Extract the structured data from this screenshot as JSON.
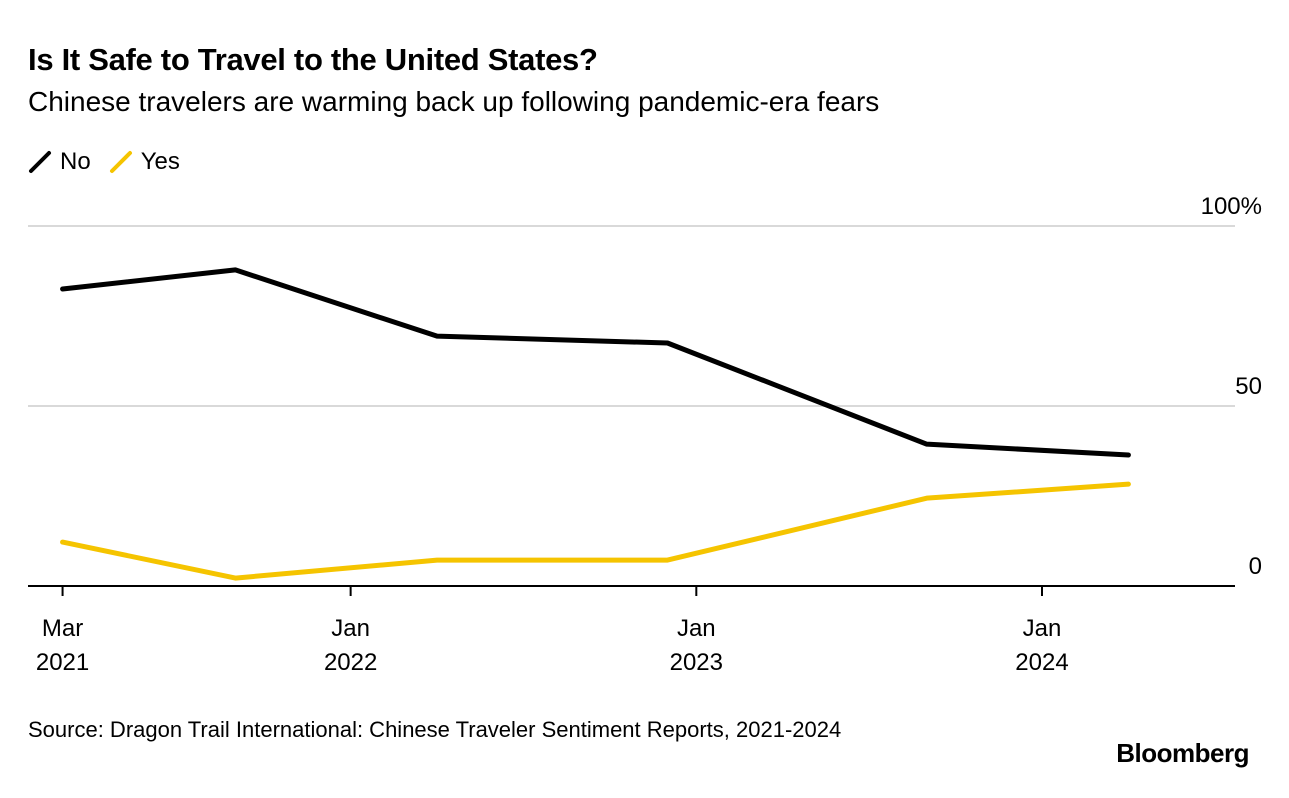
{
  "title": "Is It Safe to Travel to the United States?",
  "subtitle": "Chinese travelers are warming back up following pandemic-era fears",
  "source": "Source: Dragon Trail International: Chinese Traveler Sentiment Reports, 2021-2024",
  "logo": "Bloomberg",
  "chart_data": {
    "type": "line",
    "title": "Is It Safe to Travel to the United States?",
    "xlabel": "",
    "ylabel": "",
    "ylim": [
      0,
      100
    ],
    "yticks": [
      {
        "value": 0,
        "label": "0"
      },
      {
        "value": 50,
        "label": "50"
      },
      {
        "value": 100,
        "label": "100%"
      }
    ],
    "x_unit": "months since Jan 2021",
    "xlim": [
      0.8,
      42.7
    ],
    "xticks": [
      {
        "value": 2,
        "line1": "Mar",
        "line2": "2021"
      },
      {
        "value": 12,
        "line1": "Jan",
        "line2": "2022"
      },
      {
        "value": 24,
        "line1": "Jan",
        "line2": "2023"
      },
      {
        "value": 36,
        "line1": "Jan",
        "line2": "2024"
      }
    ],
    "x": [
      2,
      8,
      15,
      23,
      32,
      39
    ],
    "x_labels": [
      "Mar 2021",
      "Sep 2021",
      "Apr 2022",
      "Dec 2022",
      "Sep 2023",
      "Apr 2024"
    ],
    "legend_placement": "top-left",
    "grid": true,
    "series": [
      {
        "name": "No",
        "color": "#000000",
        "values": [
          82.5,
          87.8,
          69.4,
          67.5,
          39.4,
          36.4
        ]
      },
      {
        "name": "Yes",
        "color": "#f5c400",
        "values": [
          12.2,
          2.2,
          7.2,
          7.2,
          24.4,
          28.3
        ]
      }
    ]
  }
}
